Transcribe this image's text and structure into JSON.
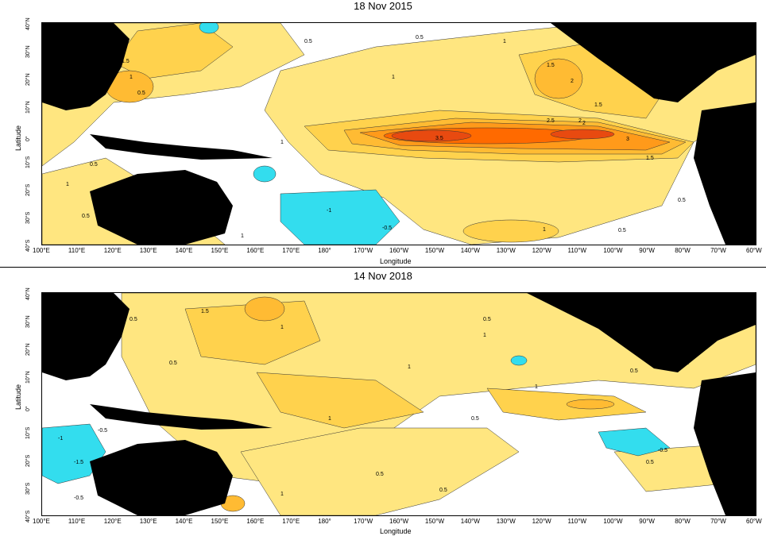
{
  "panels": [
    {
      "title": "18 Nov 2015",
      "ylabel": "Latitude",
      "xlabel": "Longitude",
      "yticks": [
        "40°N",
        "30°N",
        "20°N",
        "10°N",
        "0°",
        "10°S",
        "20°S",
        "30°S",
        "40°S"
      ],
      "xticks": [
        "100°E",
        "110°E",
        "120°E",
        "130°E",
        "140°E",
        "150°E",
        "160°E",
        "170°E",
        "180°",
        "170°W",
        "160°W",
        "150°W",
        "140°W",
        "130°W",
        "120°W",
        "110°W",
        "100°W",
        "90°W",
        "80°W",
        "70°W",
        "60°W"
      ],
      "contour_labels": [
        "0.5",
        "0.5",
        "1",
        "1.5",
        "1",
        "0.5",
        "1",
        "1.5",
        "2",
        "1.5",
        "2",
        "2.5",
        "2",
        "3.5",
        "3",
        "1.5",
        "1",
        "0.5",
        "1",
        "0.5",
        "-1",
        "-0.5",
        "1",
        "0.5",
        "0.5",
        "1",
        "0.5"
      ]
    },
    {
      "title": "14 Nov 2018",
      "ylabel": "Latitude",
      "xlabel": "Longitude",
      "yticks": [
        "40°N",
        "30°N",
        "20°N",
        "10°N",
        "0°",
        "10°S",
        "20°S",
        "30°S",
        "40°S"
      ],
      "xticks": [
        "100°E",
        "110°E",
        "120°E",
        "130°E",
        "140°E",
        "150°E",
        "160°E",
        "170°E",
        "180°",
        "170°W",
        "160°W",
        "150°W",
        "140°W",
        "130°W",
        "120°W",
        "110°W",
        "100°W",
        "90°W",
        "80°W",
        "70°W",
        "60°W"
      ],
      "contour_labels": [
        "1.5",
        "0.5",
        "1",
        "0.5",
        "0.5",
        "1",
        "1",
        "1",
        "0.5",
        "1",
        "-0.5",
        "-1",
        "-1.5",
        "-0.5",
        "0.5",
        "1",
        "0.5",
        "0.5",
        "-0.5",
        "0.5",
        "0.5",
        "0.5",
        "1",
        "0.5",
        "1",
        "0.5"
      ]
    }
  ],
  "colors": {
    "land": "#000000",
    "anom_0_5": "#ffe680",
    "anom_1": "#ffd24d",
    "anom_1_5": "#ffbb33",
    "anom_2": "#ff9a1a",
    "anom_3": "#ff6a00",
    "anom_3_5": "#e84a10",
    "neg": "#33ddee"
  }
}
